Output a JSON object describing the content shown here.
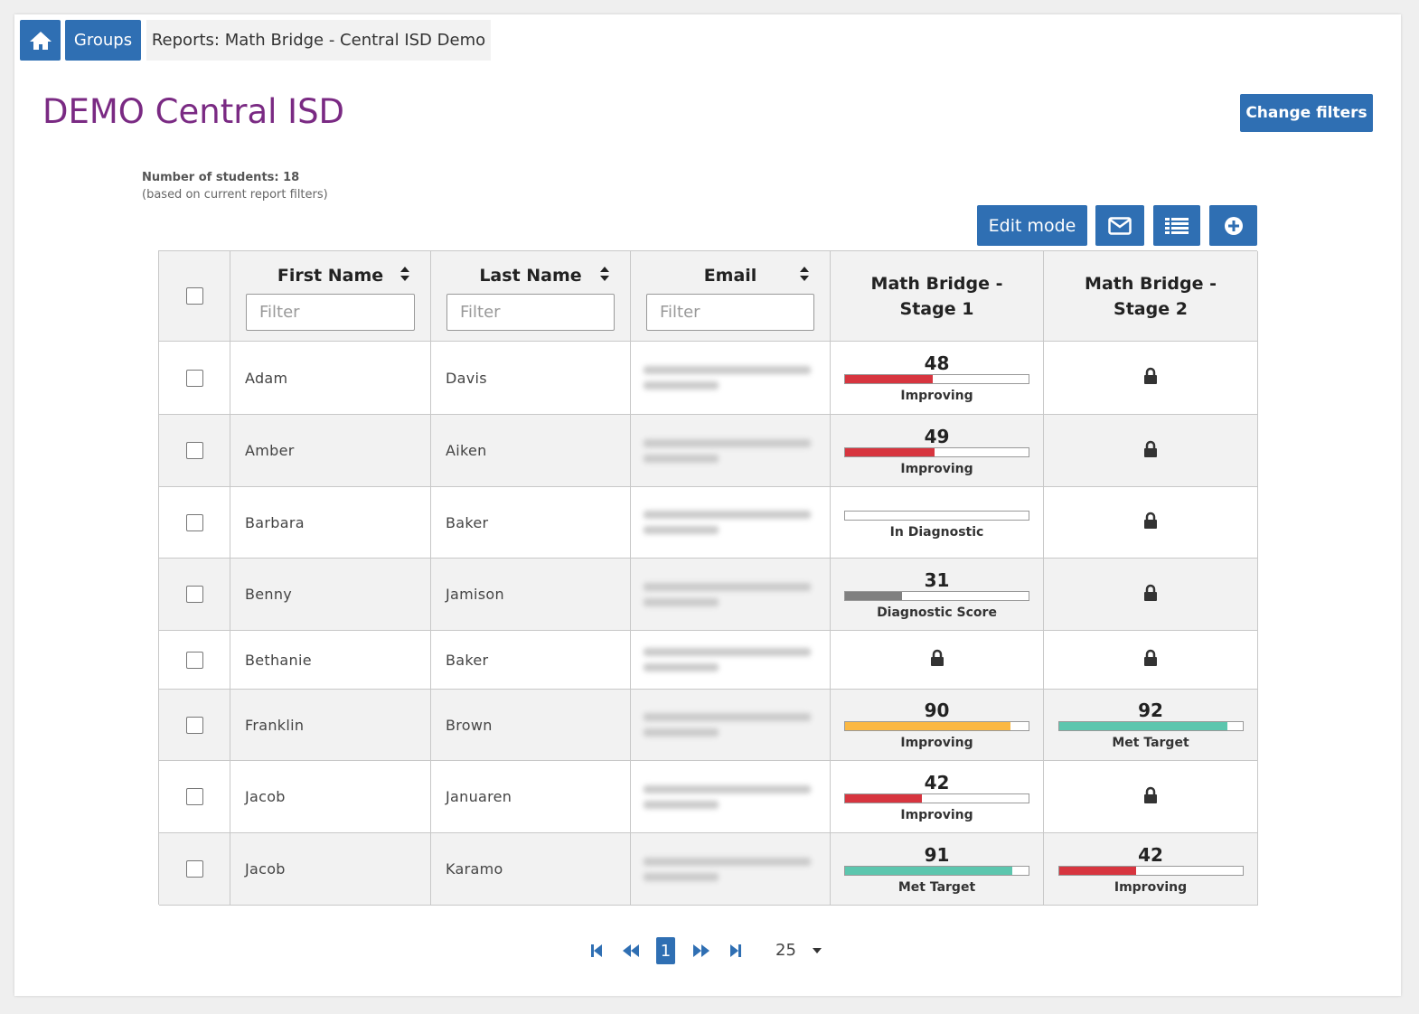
{
  "breadcrumb": {
    "groups": "Groups",
    "current": "Reports: Math Bridge - Central ISD Demo"
  },
  "title": "DEMO Central ISD",
  "change_filters": "Change filters",
  "student_count": {
    "label": "Number of students:",
    "value": 18,
    "note": "(based on current report filters)"
  },
  "edit_mode": "Edit mode",
  "table": {
    "columns": [
      "First Name",
      "Last Name",
      "Email",
      "Math Bridge - Stage 1",
      "Math Bridge - Stage 2"
    ],
    "filter_placeholder": "Filter",
    "bar_scale": [
      0,
      100
    ],
    "rows": [
      {
        "first": "Adam",
        "last": "Davis",
        "stage1": {
          "score": 48,
          "status": "Improving",
          "color": "#d7353f"
        },
        "stage2": {
          "locked": true
        }
      },
      {
        "first": "Amber",
        "last": "Aiken",
        "stage1": {
          "score": 49,
          "status": "Improving",
          "color": "#d7353f"
        },
        "stage2": {
          "locked": true
        }
      },
      {
        "first": "Barbara",
        "last": "Baker",
        "stage1": {
          "status": "In Diagnostic"
        },
        "stage2": {
          "locked": true
        }
      },
      {
        "first": "Benny",
        "last": "Jamison",
        "stage1": {
          "score": 31,
          "status": "Diagnostic Score",
          "color": "#808080"
        },
        "stage2": {
          "locked": true
        }
      },
      {
        "first": "Bethanie",
        "last": "Baker",
        "stage1": {
          "locked": true
        },
        "stage2": {
          "locked": true
        }
      },
      {
        "first": "Franklin",
        "last": "Brown",
        "stage1": {
          "score": 90,
          "status": "Improving",
          "color": "#fbb843"
        },
        "stage2": {
          "score": 92,
          "status": "Met Target",
          "color": "#5cc6ae"
        }
      },
      {
        "first": "Jacob",
        "last": "Januaren",
        "stage1": {
          "score": 42,
          "status": "Improving",
          "color": "#d7353f"
        },
        "stage2": {
          "locked": true
        }
      },
      {
        "first": "Jacob",
        "last": "Karamo",
        "stage1": {
          "score": 91,
          "status": "Met Target",
          "color": "#5cc6ae"
        },
        "stage2": {
          "score": 42,
          "status": "Improving",
          "color": "#d7353f"
        }
      }
    ]
  },
  "pagination": {
    "page": 1,
    "page_size": 25
  }
}
